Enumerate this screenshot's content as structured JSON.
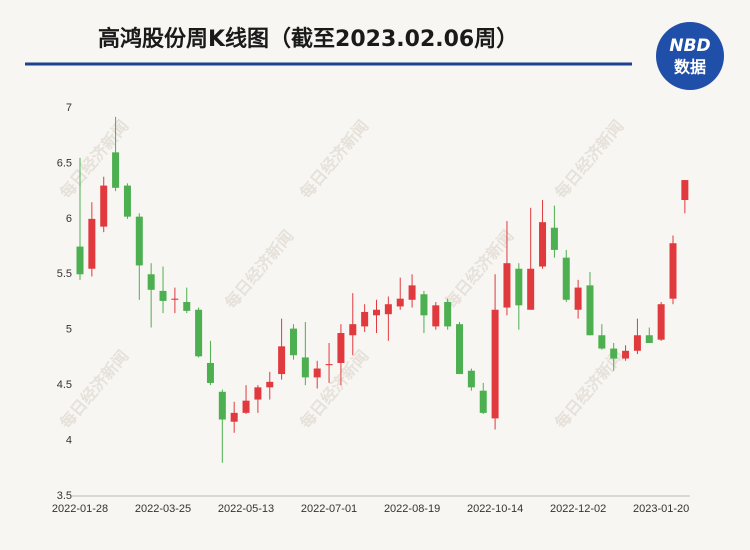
{
  "chart_data": {
    "type": "candlestick",
    "title": "高鸿股份周K线图（截至2023.02.06周）",
    "logo": {
      "top": "NBD",
      "bottom": "数据"
    },
    "watermark": "每日经济新闻",
    "up_color": "#e0393e",
    "down_color": "#4caf50",
    "categories": [
      "2022-01-28",
      null,
      null,
      null,
      null,
      null,
      null,
      "2022-03-25",
      null,
      null,
      null,
      null,
      null,
      null,
      "2022-05-13",
      null,
      null,
      null,
      null,
      null,
      null,
      "2022-07-01",
      null,
      null,
      null,
      null,
      null,
      null,
      "2022-08-19",
      null,
      null,
      null,
      null,
      null,
      null,
      "2022-10-14",
      null,
      null,
      null,
      null,
      null,
      null,
      "2022-12-02",
      null,
      null,
      null,
      null,
      null,
      null,
      "2023-01-20",
      null,
      null
    ],
    "open": [
      5.75,
      5.55,
      5.93,
      6.6,
      6.3,
      6.02,
      5.5,
      5.35,
      5.27,
      5.25,
      5.18,
      4.7,
      4.44,
      4.17,
      4.25,
      4.37,
      4.48,
      4.6,
      5.01,
      4.75,
      4.57,
      4.68,
      4.7,
      4.95,
      5.03,
      5.13,
      5.14,
      5.21,
      5.27,
      5.32,
      5.03,
      5.25,
      5.05,
      4.63,
      4.45,
      4.2,
      5.2,
      5.55,
      5.18,
      5.57,
      5.92,
      5.65,
      5.18,
      5.4,
      4.95,
      4.83,
      4.74,
      4.81,
      4.95,
      4.91,
      5.28,
      6.17
    ],
    "high": [
      6.55,
      6.15,
      6.38,
      6.92,
      6.32,
      6.05,
      5.6,
      5.57,
      5.38,
      5.38,
      5.2,
      4.9,
      4.46,
      4.35,
      4.5,
      4.5,
      4.62,
      5.1,
      5.05,
      5.07,
      4.72,
      4.88,
      5.05,
      5.33,
      5.23,
      5.27,
      5.3,
      5.47,
      5.5,
      5.35,
      5.25,
      5.28,
      5.07,
      4.65,
      4.52,
      5.5,
      5.98,
      5.6,
      6.1,
      6.17,
      6.12,
      5.72,
      5.45,
      5.52,
      5.05,
      4.88,
      4.86,
      5.1,
      5.02,
      5.25,
      5.85,
      6.35
    ],
    "low": [
      5.45,
      5.48,
      5.88,
      6.25,
      6.0,
      5.27,
      5.02,
      5.15,
      5.15,
      5.15,
      4.75,
      4.5,
      3.8,
      4.07,
      4.24,
      4.25,
      4.37,
      4.55,
      4.73,
      4.5,
      4.47,
      4.52,
      4.5,
      4.77,
      4.98,
      4.97,
      4.9,
      5.18,
      5.2,
      4.97,
      5.0,
      5.0,
      4.6,
      4.45,
      4.24,
      4.1,
      5.13,
      5.0,
      5.18,
      5.55,
      5.65,
      5.25,
      5.1,
      4.95,
      4.82,
      4.63,
      4.72,
      4.78,
      4.88,
      4.9,
      5.23,
      6.05
    ],
    "close": [
      5.5,
      6.0,
      6.3,
      6.28,
      6.02,
      5.58,
      5.36,
      5.26,
      5.28,
      5.17,
      4.76,
      4.52,
      4.19,
      4.25,
      4.36,
      4.48,
      4.53,
      4.85,
      4.77,
      4.57,
      4.65,
      4.69,
      4.97,
      5.05,
      5.16,
      5.18,
      5.23,
      5.28,
      5.4,
      5.13,
      5.22,
      5.03,
      4.6,
      4.48,
      4.25,
      5.18,
      5.6,
      5.22,
      5.55,
      5.97,
      5.72,
      5.27,
      5.38,
      4.95,
      4.83,
      4.74,
      4.81,
      4.95,
      4.88,
      5.23,
      5.78,
      6.35
    ],
    "ylim": [
      3.5,
      7
    ],
    "yticks": [
      3.5,
      4,
      4.5,
      5,
      5.5,
      6,
      6.5,
      7
    ]
  }
}
